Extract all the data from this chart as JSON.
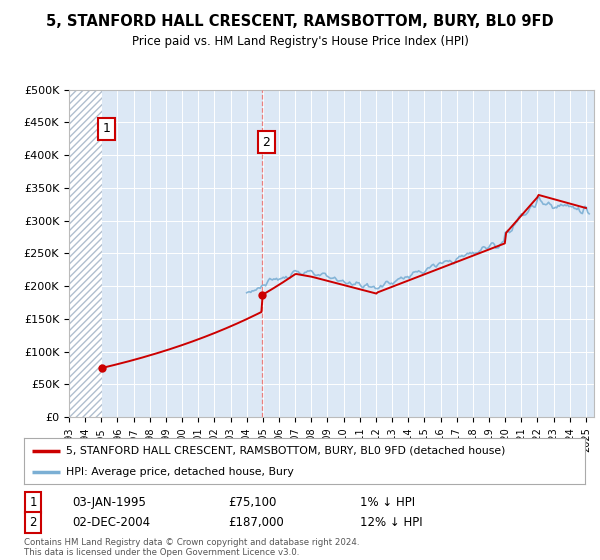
{
  "title": "5, STANFORD HALL CRESCENT, RAMSBOTTOM, BURY, BL0 9FD",
  "subtitle": "Price paid vs. HM Land Registry's House Price Index (HPI)",
  "ylim": [
    0,
    500000
  ],
  "xlim_start": 1993.0,
  "xlim_end": 2025.5,
  "hpi_color": "#7bafd4",
  "price_color": "#cc0000",
  "background_color": "#dce8f5",
  "hatch_facecolor": "#ffffff",
  "hatch_edgecolor": "#b0bfcf",
  "legend_label_price": "5, STANFORD HALL CRESCENT, RAMSBOTTOM, BURY, BL0 9FD (detached house)",
  "legend_label_hpi": "HPI: Average price, detached house, Bury",
  "sale1_year": 1995.03,
  "sale1_price": 75100,
  "sale2_year": 2004.92,
  "sale2_price": 187000,
  "annotation1_date": "03-JAN-1995",
  "annotation1_price": "£75,100",
  "annotation1_hpi": "1% ↓ HPI",
  "annotation2_date": "02-DEC-2004",
  "annotation2_price": "£187,000",
  "annotation2_hpi": "12% ↓ HPI",
  "footer": "Contains HM Land Registry data © Crown copyright and database right 2024.\nThis data is licensed under the Open Government Licence v3.0."
}
